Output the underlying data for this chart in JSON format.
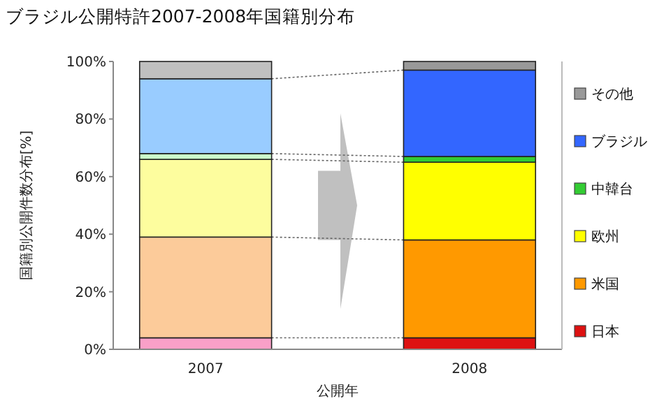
{
  "chart_data": {
    "type": "bar",
    "stacked": true,
    "title": "ブラジル公開特許2007-2008年国籍別分布",
    "xlabel": "公開年",
    "ylabel": "国籍別公開件数分布[%]",
    "categories": [
      "2007",
      "2008"
    ],
    "series": [
      {
        "name": "日本",
        "color": "#dd1111",
        "colors": [
          "#f9a0c8",
          "#dd1111"
        ],
        "values": [
          4,
          4
        ]
      },
      {
        "name": "米国",
        "color": "#ff9900",
        "colors": [
          "#fccb9a",
          "#ff9900"
        ],
        "values": [
          35,
          34
        ]
      },
      {
        "name": "欧州",
        "color": "#ffff00",
        "colors": [
          "#fdfd9e",
          "#ffff00"
        ],
        "values": [
          27,
          27
        ]
      },
      {
        "name": "中韓台",
        "color": "#33cc33",
        "colors": [
          "#ccffcc",
          "#33cc33"
        ],
        "values": [
          2,
          2
        ]
      },
      {
        "name": "ブラジル",
        "color": "#3366ff",
        "colors": [
          "#99ccff",
          "#3366ff"
        ],
        "values": [
          26,
          30
        ]
      },
      {
        "name": "その他",
        "color": "#999999",
        "colors": [
          "#c0c0c0",
          "#999999"
        ],
        "values": [
          6,
          3
        ]
      }
    ],
    "ylim": [
      0,
      100
    ],
    "yticks": [
      {
        "value": 0,
        "label": "0%"
      },
      {
        "value": 20,
        "label": "20%"
      },
      {
        "value": 40,
        "label": "40%"
      },
      {
        "value": 60,
        "label": "60%"
      },
      {
        "value": 80,
        "label": "80%"
      },
      {
        "value": 100,
        "label": "100%"
      }
    ],
    "legend": "right",
    "grid": false
  }
}
